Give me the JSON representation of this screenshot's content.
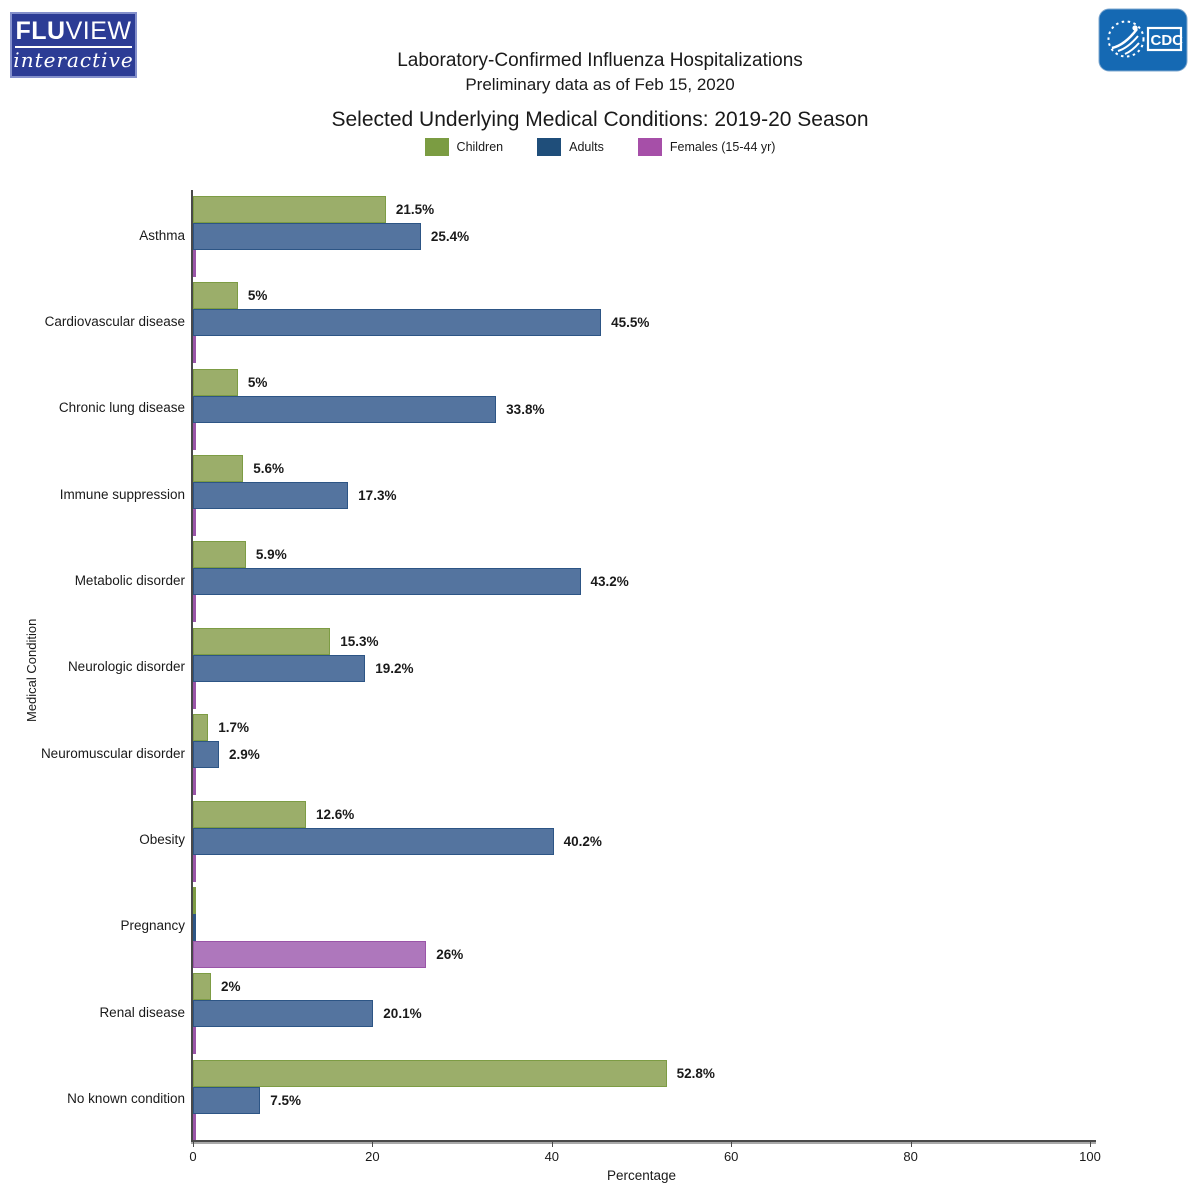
{
  "header": {
    "fluview_logo": {
      "word_bold": "FLU",
      "word_rest": "VIEW",
      "tagline": "interactive"
    },
    "cdc_logo_text": "CDC"
  },
  "legend": {
    "items": [
      {
        "label": "Children",
        "color": "#7b9c42"
      },
      {
        "label": "Adults",
        "color": "#1f4e7a"
      },
      {
        "label": "Females (15-44 yr)",
        "color": "#a64fa8"
      }
    ]
  },
  "chart_data": {
    "type": "bar",
    "orientation": "horizontal",
    "title": "Laboratory-Confirmed Influenza Hospitalizations",
    "subtitle": "Preliminary data as of Feb 15, 2020",
    "section_title": "Selected Underlying Medical Conditions: 2019-20 Season",
    "xlabel": "Percentage",
    "ylabel": "Medical Condition",
    "xlim": [
      0,
      100
    ],
    "x_ticks": [
      0,
      20,
      40,
      60,
      80,
      100
    ],
    "grid": false,
    "legend_position": "top",
    "categories": [
      "Asthma",
      "Cardiovascular disease",
      "Chronic lung disease",
      "Immune suppression",
      "Metabolic disorder",
      "Neurologic disorder",
      "Neuromuscular disorder",
      "Obesity",
      "Pregnancy",
      "Renal disease",
      "No known condition"
    ],
    "series": [
      {
        "name": "Children",
        "fill": "#9bae6a",
        "stroke": "#7d9c44",
        "values": [
          21.5,
          5,
          5,
          5.6,
          5.9,
          15.3,
          1.7,
          12.6,
          0,
          2,
          52.8
        ],
        "labels": [
          "21.5%",
          "5%",
          "5%",
          "5.6%",
          "5.9%",
          "15.3%",
          "1.7%",
          "12.6%",
          "",
          "2%",
          "52.8%"
        ]
      },
      {
        "name": "Adults",
        "fill": "#54749f",
        "stroke": "#2d5585",
        "values": [
          25.4,
          45.5,
          33.8,
          17.3,
          43.2,
          19.2,
          2.9,
          40.2,
          0,
          20.1,
          7.5
        ],
        "labels": [
          "25.4%",
          "45.5%",
          "33.8%",
          "17.3%",
          "43.2%",
          "19.2%",
          "2.9%",
          "40.2%",
          "",
          "20.1%",
          "7.5%"
        ]
      },
      {
        "name": "Females (15-44 yr)",
        "fill": "#ae77bc",
        "stroke": "#9a55a8",
        "values": [
          0,
          0,
          0,
          0,
          0,
          0,
          0,
          0,
          26,
          0,
          0
        ],
        "labels": [
          "",
          "",
          "",
          "",
          "",
          "",
          "",
          "",
          "26%",
          "",
          ""
        ]
      }
    ]
  }
}
